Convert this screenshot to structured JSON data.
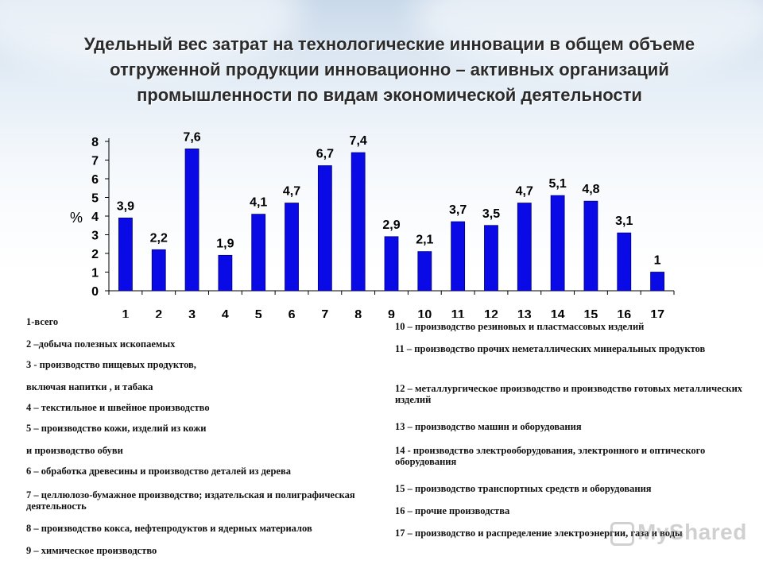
{
  "title": "Удельный вес затрат на технологические инновации в общем объеме отгруженной продукции инновационно – активных организаций промышленности по видам экономической деятельности",
  "chart_data": {
    "type": "bar",
    "categories": [
      "1",
      "2",
      "3",
      "4",
      "5",
      "6",
      "7",
      "8",
      "9",
      "10",
      "11",
      "12",
      "13",
      "14",
      "15",
      "16",
      "17"
    ],
    "values": [
      3.9,
      2.2,
      7.6,
      1.9,
      4.1,
      4.7,
      6.7,
      7.4,
      2.9,
      2.1,
      3.7,
      3.5,
      4.7,
      5.1,
      4.8,
      3.1,
      1
    ],
    "data_labels": [
      "3,9",
      "2,2",
      "7,6",
      "1,9",
      "4,1",
      "4,7",
      "6,7",
      "7,4",
      "2,9",
      "2,1",
      "3,7",
      "3,5",
      "4,7",
      "5,1",
      "4,8",
      "3,1",
      "1"
    ],
    "yticks": [
      "0",
      "1",
      "2",
      "3",
      "4",
      "5",
      "6",
      "7",
      "8"
    ],
    "ylim": [
      0,
      8
    ],
    "ylabel": "%",
    "xlabel": "",
    "bar_color": "#0a0ae6",
    "grid": false
  },
  "legend_left": [
    "1-всего",
    "2 –добыча полезных ископаемых",
    "3 - производство пищевых продуктов,",
    "включая напитки , и табака",
    "4 – текстильное и швейное производство",
    "5 – производство кожи, изделий из кожи",
    "и производство обуви",
    "6 – обработка древесины и производство деталей из дерева",
    "7 – целлюлозо-бумажное производство; издательская и полиграфическая деятельность",
    "8 – производство кокса, нефтепродуктов и ядерных материалов",
    "9 – химическое производство"
  ],
  "legend_right": [
    "10 – производство резиновых и пластмассовых изделий",
    "11 – производство прочих неметаллических минеральных продуктов",
    "12 – металлургическое производство и производство готовых металлических изделий",
    "13 – производство машин и оборудования",
    "14 - производство электрооборудования, электронного и оптического оборудования",
    "15 – производство транспортных средств и оборудования",
    "16 – прочие производства",
    "17 – производство и распределение электроэнергии, газа и воды"
  ],
  "watermark": "MyShared"
}
